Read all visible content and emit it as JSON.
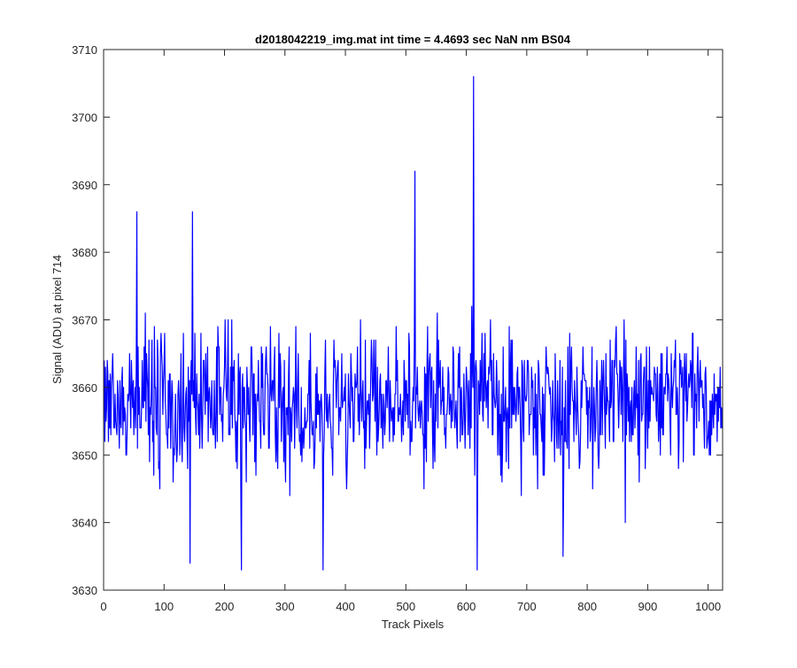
{
  "chart_data": {
    "type": "line",
    "title": "d2018042219_img.mat int time = 4.4693 sec  NaN nm BS04",
    "xlabel": "Track Pixels",
    "ylabel": "Signal (ADU) at pixel 714",
    "xlim": [
      0,
      1024
    ],
    "ylim": [
      3630,
      3710
    ],
    "xticks": [
      0,
      100,
      200,
      300,
      400,
      500,
      600,
      700,
      800,
      900,
      1000
    ],
    "yticks": [
      3630,
      3640,
      3650,
      3660,
      3670,
      3680,
      3690,
      3700,
      3710
    ],
    "grid": false,
    "legend": "none",
    "line_color": "#0000ff",
    "series": [
      {
        "x_start": 1,
        "x_step": 1,
        "count": 1024,
        "mean": 3658,
        "noise_range": [
          3633,
          3686
        ],
        "values_sample_key_points": [
          {
            "x": 55,
            "y": 3686
          },
          {
            "x": 147,
            "y": 3686
          },
          {
            "x": 143,
            "y": 3634
          },
          {
            "x": 228,
            "y": 3633
          },
          {
            "x": 363,
            "y": 3633
          },
          {
            "x": 515,
            "y": 3692
          },
          {
            "x": 612,
            "y": 3706
          },
          {
            "x": 618,
            "y": 3633
          },
          {
            "x": 760,
            "y": 3635
          },
          {
            "x": 863,
            "y": 3640
          }
        ]
      }
    ]
  }
}
